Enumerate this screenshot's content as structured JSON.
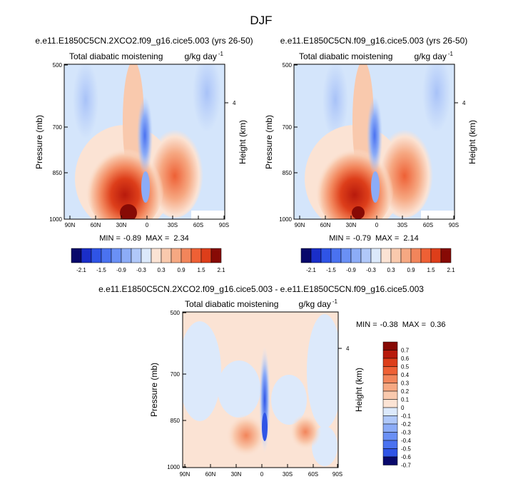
{
  "figure": {
    "title": "DJF",
    "colors": {
      "blue_scale": [
        "#08086b",
        "#1a2ec8",
        "#2f54e6",
        "#4a72f0",
        "#6a90f5",
        "#8cacf7",
        "#b0c8f9",
        "#dce9fb"
      ],
      "red_scale": [
        "#fbe3d4",
        "#f9c9ad",
        "#f6a882",
        "#f2855b",
        "#ee6035",
        "#dd3e1a",
        "#b81a0c",
        "#870a05"
      ],
      "background_field": "#d4e5fb"
    },
    "panels": [
      {
        "id": "top-left",
        "case": "e.e11.E1850C5CN.2XCO2.f09_g16.cice5.003 (yrs 26-50)",
        "left_label": "Total diabatic moistening",
        "right_label": "g/kg day",
        "right_label_sup": "-1",
        "y_axis_label": "Pressure (mb)",
        "right_axis_label": "Height (km)",
        "min_text": "MIN =",
        "min_value": "-0.89",
        "max_text": "MAX =",
        "max_value": "2.34"
      },
      {
        "id": "top-right",
        "case": "e.e11.E1850C5CN.f09_g16.cice5.003 (yrs 26-50)",
        "left_label": "Total diabatic moistening",
        "right_label": "g/kg day",
        "right_label_sup": "-1",
        "y_axis_label": "Pressure (mb)",
        "right_axis_label": "Height (km)",
        "min_text": "MIN =",
        "min_value": "-0.79",
        "max_text": "MAX =",
        "max_value": "2.14"
      },
      {
        "id": "bottom",
        "case": "e.e11.E1850C5CN.2XCO2.f09_g16.cice5.003 - e.e11.E1850C5CN.f09_g16.cice5.003",
        "left_label": "Total diabatic moistening",
        "right_label": "g/kg day",
        "right_label_sup": "-1",
        "y_axis_label": "Pressure (mb)",
        "right_axis_label": "Height (km)",
        "min_text": "MIN =",
        "min_value": "-0.38",
        "max_text": "MAX =",
        "max_value": "0.36"
      }
    ]
  },
  "chart_data": [
    {
      "type": "heatmap",
      "title": "e.e11.E1850C5CN.2XCO2.f09_g16.cice5.003 (yrs 26-50)",
      "xlabel": "",
      "ylabel": "Pressure (mb)",
      "right_ylabel": "Height (km)",
      "x_ticks": [
        "90N",
        "60N",
        "30N",
        "0",
        "30S",
        "60S",
        "90S"
      ],
      "y_ticks": [
        500,
        700,
        850,
        1000
      ],
      "y_range": [
        1000,
        500
      ],
      "right_y_ticks": [
        "4"
      ],
      "units": "g/kg day-1",
      "min": -0.89,
      "max": 2.34,
      "colorbar_labels": [
        "-2.1",
        "-1.5",
        "-0.9",
        "-0.3",
        "0.3",
        "0.9",
        "1.5",
        "2.1"
      ]
    },
    {
      "type": "heatmap",
      "title": "e.e11.E1850C5CN.f09_g16.cice5.003 (yrs 26-50)",
      "xlabel": "",
      "ylabel": "Pressure (mb)",
      "right_ylabel": "Height (km)",
      "x_ticks": [
        "90N",
        "60N",
        "30N",
        "0",
        "30S",
        "60S",
        "90S"
      ],
      "y_ticks": [
        500,
        700,
        850,
        1000
      ],
      "y_range": [
        1000,
        500
      ],
      "right_y_ticks": [
        "4"
      ],
      "units": "g/kg day-1",
      "min": -0.79,
      "max": 2.14,
      "colorbar_labels": [
        "-2.1",
        "-1.5",
        "-0.9",
        "-0.3",
        "0.3",
        "0.9",
        "1.5",
        "2.1"
      ]
    },
    {
      "type": "heatmap",
      "title": "e.e11.E1850C5CN.2XCO2.f09_g16.cice5.003 - e.e11.E1850C5CN.f09_g16.cice5.003",
      "xlabel": "",
      "ylabel": "Pressure (mb)",
      "right_ylabel": "Height (km)",
      "x_ticks": [
        "90N",
        "60N",
        "30N",
        "0",
        "30S",
        "60S",
        "90S"
      ],
      "y_ticks": [
        500,
        700,
        850,
        1000
      ],
      "y_range": [
        1000,
        500
      ],
      "right_y_ticks": [
        "4"
      ],
      "units": "g/kg day-1",
      "min": -0.38,
      "max": 0.36,
      "colorbar_labels": [
        "0.7",
        "0.6",
        "0.5",
        "0.4",
        "0.3",
        "0.2",
        "0.1",
        "0",
        "-0.1",
        "-0.2",
        "-0.3",
        "-0.4",
        "-0.5",
        "-0.6",
        "-0.7"
      ]
    }
  ]
}
